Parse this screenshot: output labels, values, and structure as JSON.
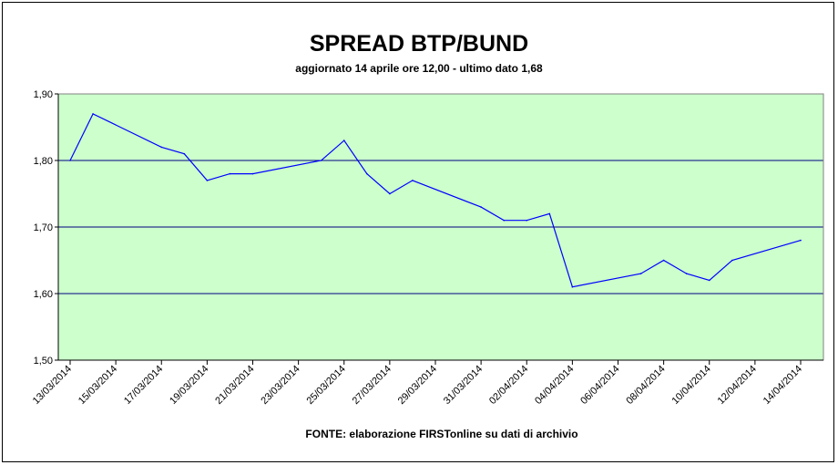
{
  "chart_data": {
    "type": "line",
    "title": "SPREAD BTP/BUND",
    "subtitle": "aggiornato 14 aprile ore 12,00 - ultimo dato 1,68",
    "source": "FONTE: elaborazione FIRSTonline su dati di archivio",
    "xlabel": "",
    "ylabel": "",
    "ylim": [
      1.5,
      1.9
    ],
    "y_ticks": [
      "1,50",
      "1,60",
      "1,70",
      "1,80",
      "1,90"
    ],
    "y_tick_values": [
      1.5,
      1.6,
      1.7,
      1.8,
      1.9
    ],
    "x_tick_labels": [
      "13/03/2014",
      "15/03/2014",
      "17/03/2014",
      "19/03/2014",
      "21/03/2014",
      "23/03/2014",
      "25/03/2014",
      "27/03/2014",
      "29/03/2014",
      "31/03/2014",
      "02/04/2014",
      "04/04/2014",
      "06/04/2014",
      "08/04/2014",
      "10/04/2014",
      "12/04/2014",
      "14/04/2014"
    ],
    "x_range": [
      "13/03/2014",
      "14/04/2014"
    ],
    "grid": "horizontal",
    "legend": "none",
    "colors": {
      "plot_background": "#ccffcc",
      "line": "#0000ff",
      "gridline": "#000080"
    },
    "series": [
      {
        "points": [
          {
            "date": "13/03/2014",
            "value": 1.8
          },
          {
            "date": "14/03/2014",
            "value": 1.87
          },
          {
            "date": "17/03/2014",
            "value": 1.82
          },
          {
            "date": "18/03/2014",
            "value": 1.81
          },
          {
            "date": "19/03/2014",
            "value": 1.77
          },
          {
            "date": "20/03/2014",
            "value": 1.78
          },
          {
            "date": "21/03/2014",
            "value": 1.78
          },
          {
            "date": "24/03/2014",
            "value": 1.8
          },
          {
            "date": "25/03/2014",
            "value": 1.83
          },
          {
            "date": "26/03/2014",
            "value": 1.78
          },
          {
            "date": "27/03/2014",
            "value": 1.75
          },
          {
            "date": "28/03/2014",
            "value": 1.77
          },
          {
            "date": "31/03/2014",
            "value": 1.73
          },
          {
            "date": "01/04/2014",
            "value": 1.71
          },
          {
            "date": "02/04/2014",
            "value": 1.71
          },
          {
            "date": "03/04/2014",
            "value": 1.72
          },
          {
            "date": "04/04/2014",
            "value": 1.61
          },
          {
            "date": "07/04/2014",
            "value": 1.63
          },
          {
            "date": "08/04/2014",
            "value": 1.65
          },
          {
            "date": "09/04/2014",
            "value": 1.63
          },
          {
            "date": "10/04/2014",
            "value": 1.62
          },
          {
            "date": "11/04/2014",
            "value": 1.65
          },
          {
            "date": "14/04/2014",
            "value": 1.68
          }
        ]
      }
    ]
  }
}
